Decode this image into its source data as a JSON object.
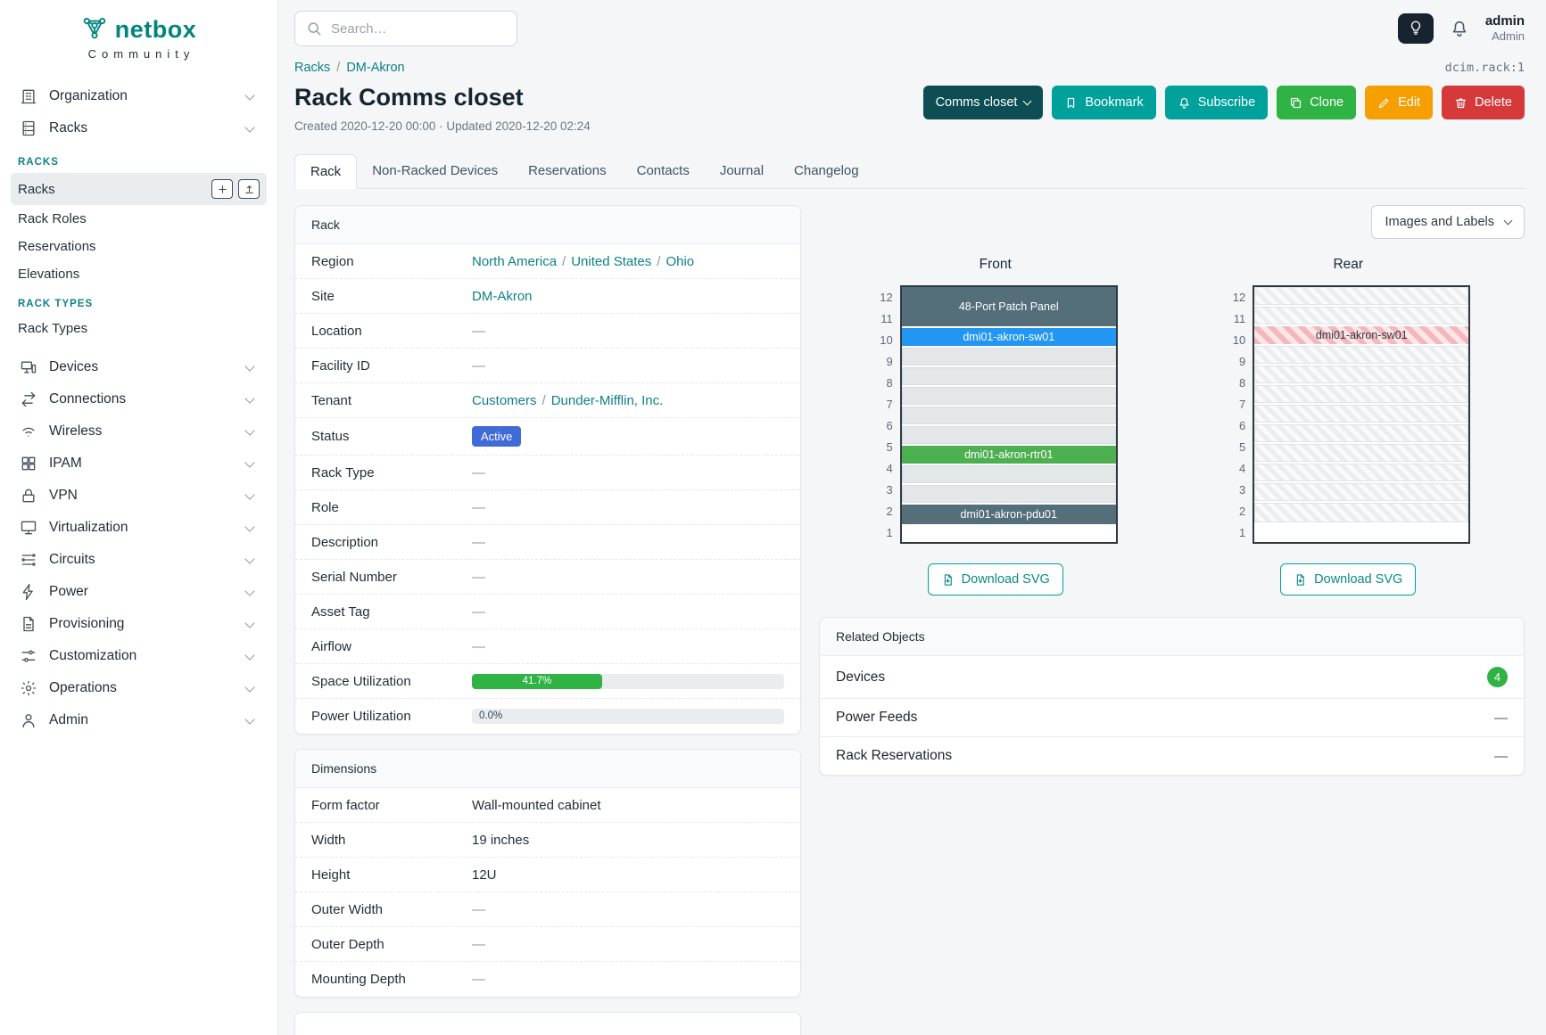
{
  "brand": {
    "name": "netbox",
    "community": "Community"
  },
  "search": {
    "placeholder": "Search…"
  },
  "topbar": {
    "username": "admin",
    "role": "Admin"
  },
  "sidebar": {
    "organization": "Organization",
    "racks_group": "Racks",
    "section_racks": "RACKS",
    "racks": "Racks",
    "rack_roles": "Rack Roles",
    "reservations": "Reservations",
    "elevations": "Elevations",
    "section_rack_types": "RACK TYPES",
    "rack_types": "Rack Types",
    "items": [
      "Devices",
      "Connections",
      "Wireless",
      "IPAM",
      "VPN",
      "Virtualization",
      "Circuits",
      "Power",
      "Provisioning",
      "Customization",
      "Operations",
      "Admin"
    ]
  },
  "breadcrumb": {
    "racks": "Racks",
    "site": "DM-Akron"
  },
  "sep": "/",
  "object_id": "dcim.rack:1",
  "page": {
    "title": "Rack Comms closet",
    "meta": "Created 2020-12-20 00:00 · Updated 2020-12-20 02:24"
  },
  "actions": {
    "rack_selector": "Comms closet",
    "bookmark": "Bookmark",
    "subscribe": "Subscribe",
    "clone": "Clone",
    "edit": "Edit",
    "delete": "Delete"
  },
  "tabs": [
    "Rack",
    "Non-Racked Devices",
    "Reservations",
    "Contacts",
    "Journal",
    "Changelog"
  ],
  "rack_card": {
    "title": "Rack",
    "labels": {
      "region": "Region",
      "site": "Site",
      "location": "Location",
      "facility_id": "Facility ID",
      "tenant": "Tenant",
      "status": "Status",
      "rack_type": "Rack Type",
      "role": "Role",
      "description": "Description",
      "serial": "Serial Number",
      "asset_tag": "Asset Tag",
      "airflow": "Airflow",
      "space_util": "Space Utilization",
      "power_util": "Power Utilization"
    },
    "values": {
      "region_links": [
        "North America",
        "United States",
        "Ohio"
      ],
      "site": "DM-Akron",
      "location": "—",
      "facility_id": "—",
      "tenant_links": [
        "Customers",
        "Dunder-Mifflin, Inc."
      ],
      "status": "Active",
      "rack_type": "—",
      "role": "—",
      "description": "—",
      "serial": "—",
      "asset_tag": "—",
      "airflow": "—",
      "space_util_pct": "41.7%",
      "space_util_num": 41.7,
      "power_util_pct": "0.0%",
      "power_util_num": 0
    }
  },
  "dimensions": {
    "title": "Dimensions",
    "rows": [
      {
        "label": "Form factor",
        "value": "Wall-mounted cabinet"
      },
      {
        "label": "Width",
        "value": "19 inches"
      },
      {
        "label": "Height",
        "value": "12U"
      },
      {
        "label": "Outer Width",
        "value": "—"
      },
      {
        "label": "Outer Depth",
        "value": "—"
      },
      {
        "label": "Mounting Depth",
        "value": "—"
      }
    ]
  },
  "elevations": {
    "toggle": "Images and Labels",
    "front_title": "Front",
    "rear_title": "Rear",
    "download": "Download SVG",
    "unit_numbers": [
      "12",
      "11",
      "10",
      "9",
      "8",
      "7",
      "6",
      "5",
      "4",
      "3",
      "2",
      "1"
    ],
    "front_devices": [
      {
        "name": "48-Port Patch Panel",
        "position": "U11-U12"
      },
      {
        "name": "dmi01-akron-sw01",
        "position": "U10"
      },
      {
        "name": "dmi01-akron-rtr01",
        "position": "U4"
      },
      {
        "name": "dmi01-akron-pdu01",
        "position": "U1"
      }
    ],
    "rear_devices": [
      {
        "name": "dmi01-akron-sw01",
        "position": "U10"
      }
    ]
  },
  "related": {
    "title": "Related Objects",
    "rows": [
      {
        "label": "Devices",
        "value": "4"
      },
      {
        "label": "Power Feeds",
        "value": "—"
      },
      {
        "label": "Rack Reservations",
        "value": "—"
      }
    ]
  },
  "colors": {
    "brand": "#00857e",
    "link": "#0d8087",
    "status_active": "#3f6ad8",
    "utilization_bar": "#2fb344",
    "device_patch_panel": "#546e7a",
    "device_switch": "#2196f3",
    "device_router": "#4caf50",
    "btn_teal": "#00a19a",
    "btn_clone": "#2fb344",
    "btn_edit": "#f59f00",
    "btn_delete": "#d63939"
  }
}
